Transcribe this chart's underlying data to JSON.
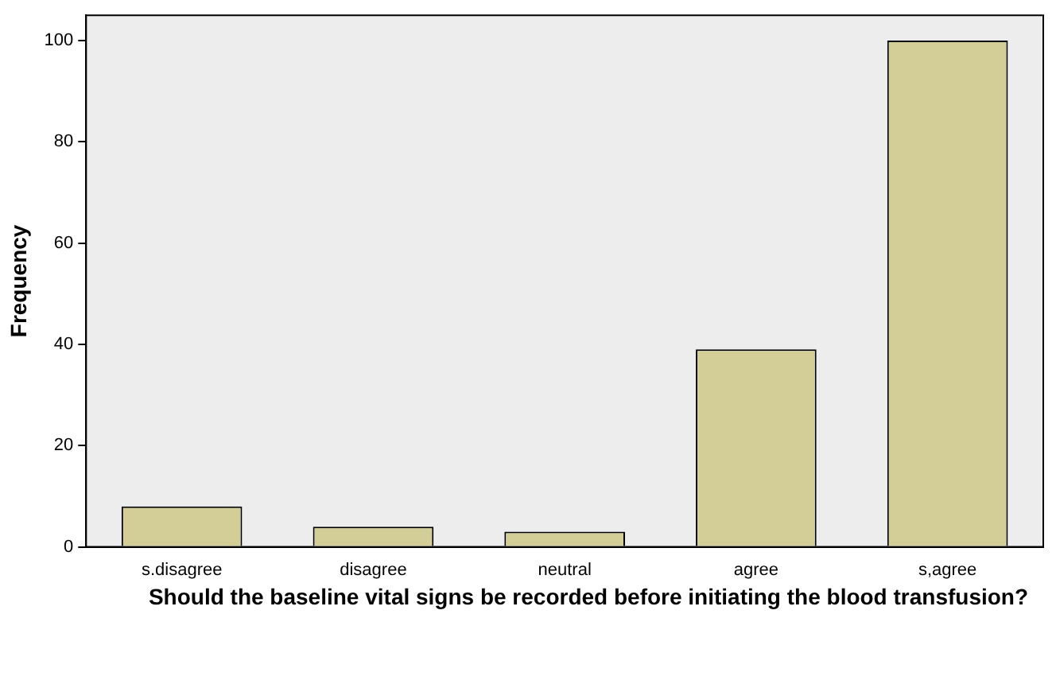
{
  "chart_data": {
    "type": "bar",
    "xlabel": "Should the baseline vital signs be recorded before initiating the blood transfusion?",
    "ylabel": "Frequency",
    "categories": [
      "s.disagree",
      "disagree",
      "neutral",
      "agree",
      "s,agree"
    ],
    "values": [
      8,
      4,
      3,
      39,
      100
    ],
    "color": "#d3ce98",
    "ylim": [
      0,
      105
    ],
    "yticks": [
      0,
      20,
      40,
      60,
      80,
      100
    ],
    "grid": false,
    "legend": false
  }
}
